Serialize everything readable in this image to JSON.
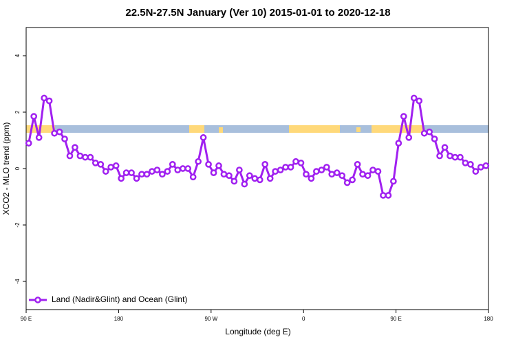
{
  "chart_data": {
    "type": "line",
    "title": "22.5N-27.5N January (Ver 10)   2015-01-01 to 2020-12-18",
    "x_label": "Longitude (deg E)",
    "y_label": "XCO2 - MLO trend (ppm)",
    "xlim": [
      90,
      540
    ],
    "ylim": [
      -5,
      5
    ],
    "xticks": [
      {
        "value": 90,
        "label": "90 E"
      },
      180,
      {
        "value": 270,
        "label": "90 W"
      },
      {
        "value": 360,
        "label": "0"
      },
      {
        "value": 450,
        "label": "90 E"
      },
      180
    ],
    "yticks": [
      -4,
      -2,
      0,
      2,
      4
    ],
    "legend": "bottom-left",
    "x": [
      92.5,
      97.5,
      102.5,
      107.5,
      112.5,
      117.5,
      122.5,
      127.5,
      132.5,
      137.5,
      142.5,
      147.5,
      152.5,
      157.5,
      162.5,
      167.5,
      172.5,
      177.5,
      182.5,
      187.5,
      192.5,
      197.5,
      202.5,
      207.5,
      212.5,
      217.5,
      222.5,
      227.5,
      232.5,
      237.5,
      242.5,
      247.5,
      252.5,
      257.5,
      262.5,
      267.5,
      272.5,
      277.5,
      282.5,
      287.5,
      292.5,
      297.5,
      302.5,
      307.5,
      312.5,
      317.5,
      322.5,
      327.5,
      332.5,
      337.5,
      342.5,
      347.5,
      352.5,
      357.5,
      362.5,
      367.5,
      372.5,
      377.5,
      382.5,
      387.5,
      392.5,
      397.5,
      402.5,
      407.5,
      412.5,
      417.5,
      422.5,
      427.5,
      432.5,
      437.5,
      442.5,
      447.5,
      452.5,
      457.5,
      462.5,
      467.5,
      472.5,
      477.5,
      482.5,
      487.5,
      492.5,
      497.5,
      502.5,
      507.5,
      512.5,
      517.5,
      522.5,
      527.5,
      532.5,
      537.5
    ],
    "series": [
      {
        "name": "Land (Nadir&Glint) and Ocean (Glint)",
        "color": "#a020f0",
        "values": [
          0.9,
          1.85,
          1.1,
          2.5,
          2.4,
          1.25,
          1.3,
          1.05,
          0.45,
          0.75,
          0.45,
          0.4,
          0.4,
          0.2,
          0.15,
          -0.1,
          0.05,
          0.1,
          -0.35,
          -0.15,
          -0.15,
          -0.35,
          -0.2,
          -0.2,
          -0.1,
          -0.05,
          -0.2,
          -0.1,
          0.15,
          -0.05,
          0.0,
          0.0,
          -0.3,
          0.25,
          1.1,
          0.15,
          -0.15,
          0.1,
          -0.2,
          -0.25,
          -0.45,
          -0.05,
          -0.55,
          -0.25,
          -0.35,
          -0.4,
          0.15,
          -0.35,
          -0.1,
          -0.05,
          0.05,
          0.05,
          0.25,
          0.2,
          -0.2,
          -0.35,
          -0.1,
          -0.05,
          0.05,
          -0.2,
          -0.15,
          -0.25,
          -0.5,
          -0.4,
          0.15,
          -0.2,
          -0.25,
          -0.05,
          -0.1,
          -0.95,
          -0.95,
          -0.45,
          0.9,
          1.85,
          1.1,
          2.5,
          2.4,
          1.25,
          1.3,
          1.05,
          0.45,
          0.75,
          0.45,
          0.4,
          0.4,
          0.2,
          0.15,
          -0.1,
          0.05,
          0.1
        ]
      }
    ]
  }
}
